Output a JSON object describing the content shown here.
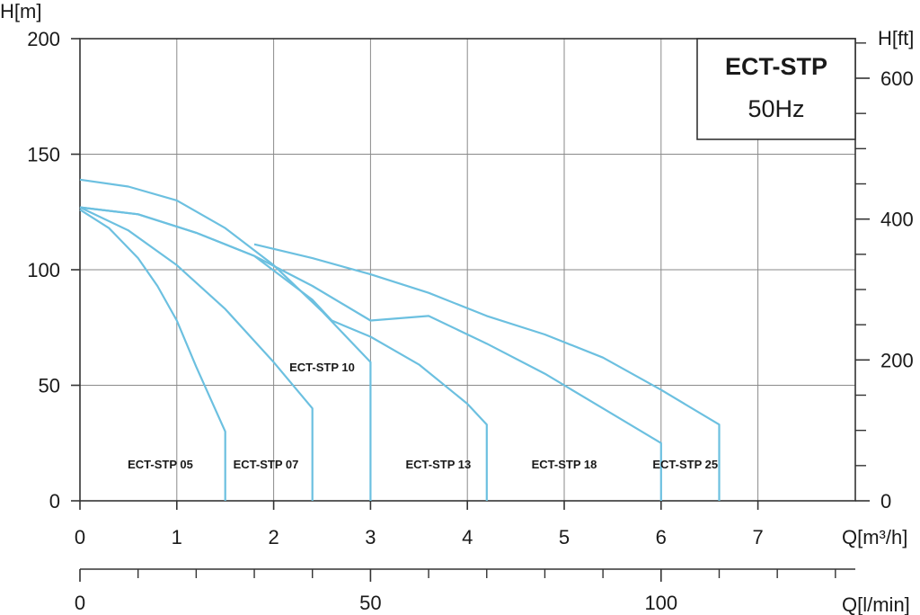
{
  "chart_data": {
    "type": "line",
    "title": "ECT-STP",
    "subtitle": "50Hz",
    "ylabel_left": "H[m]",
    "ylabel_right": "H[ft]",
    "xlabel_top": "Q[m³/h]",
    "xlabel_bottom": "Q[l/min]",
    "xlim": [
      0,
      8
    ],
    "ylim": [
      0,
      200
    ],
    "x_ticks": [
      0,
      1,
      2,
      3,
      4,
      5,
      6,
      7
    ],
    "y_ticks_left": [
      0,
      50,
      100,
      150,
      200
    ],
    "y_ticks_right_labeled": [
      0,
      200,
      400,
      600
    ],
    "y_ticks_right_minor_ft": [
      50,
      100,
      150,
      250,
      300,
      350,
      450,
      500,
      550,
      650
    ],
    "lmin_ticks_labeled": [
      0,
      50,
      100
    ],
    "lmin_ticks_minor": [
      10,
      20,
      30,
      40,
      60,
      70,
      80,
      90,
      110,
      120,
      130
    ],
    "grid": true,
    "legend_position": "top-right",
    "series": [
      {
        "name": "ECT-STP 05",
        "x": [
          0,
          0.3,
          0.6,
          0.8,
          1.0,
          1.2,
          1.5
        ],
        "y": [
          126,
          118,
          105,
          93,
          78,
          58,
          30
        ],
        "end_x": 1.5,
        "label_x": 0.83,
        "label_y": 16
      },
      {
        "name": "ECT-STP 07",
        "x": [
          0,
          0.5,
          1.0,
          1.5,
          2.0,
          2.4
        ],
        "y": [
          127,
          117,
          102,
          83,
          60,
          40
        ],
        "end_x": 2.4,
        "label_x": 1.92,
        "label_y": 16
      },
      {
        "name": "ECT-STP 10",
        "x": [
          0,
          0.5,
          1.0,
          1.5,
          2.0,
          2.5,
          3.0
        ],
        "y": [
          139,
          136,
          130,
          118,
          102,
          82,
          60
        ],
        "end_x": 3.0,
        "label_x": 2.5,
        "label_y": 58
      },
      {
        "name": "ECT-STP 13",
        "x": [
          0,
          0.6,
          1.2,
          1.8,
          2.4,
          2.6,
          3.0,
          3.5,
          4.0,
          4.2
        ],
        "y": [
          127,
          124,
          116,
          106,
          87,
          78,
          71,
          59,
          42,
          33
        ],
        "end_x": 4.2,
        "label_x": 3.7,
        "label_y": 16
      },
      {
        "name": "ECT-STP 18",
        "x": [
          0,
          0.6,
          1.2,
          1.8,
          2.4,
          3.0,
          3.6,
          4.2,
          4.8,
          5.4,
          6.0
        ],
        "y": [
          127,
          124,
          116,
          106,
          93,
          78,
          80,
          68,
          55,
          40,
          25
        ],
        "end_x": 6.0,
        "label_x": 5.0,
        "label_y": 16
      },
      {
        "name": "ECT-STP 25",
        "x": [
          1.8,
          2.4,
          3.0,
          3.6,
          4.2,
          4.8,
          5.4,
          6.0,
          6.6
        ],
        "y": [
          111,
          105,
          98,
          90,
          80,
          72,
          62,
          48,
          33
        ],
        "end_x": 6.6,
        "label_x": 6.25,
        "label_y": 16
      }
    ],
    "curve_color": "#6cc0e0",
    "grid_color": "#8a8a8a",
    "axis_color": "#333333"
  }
}
